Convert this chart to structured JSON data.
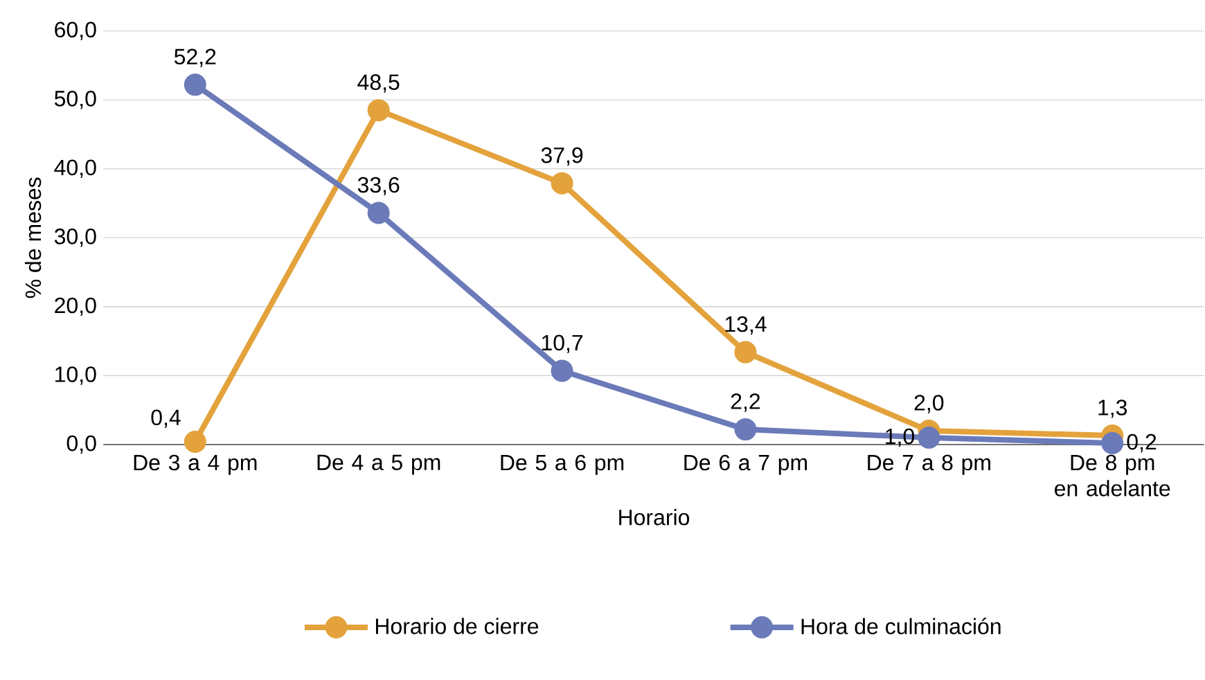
{
  "chart_data": {
    "type": "line",
    "xlabel": "Horario",
    "ylabel": "% de meses",
    "categories": [
      "De 3 a 4 pm",
      "De 4 a 5 pm",
      "De 5 a 6 pm",
      "De 6 a 7 pm",
      "De 7 a 8 pm",
      "De 8 pm en adelante"
    ],
    "ylim": [
      0,
      60
    ],
    "yticks": [
      {
        "value": 0,
        "label": "0,0"
      },
      {
        "value": 10,
        "label": "10,0"
      },
      {
        "value": 20,
        "label": "20,0"
      },
      {
        "value": 30,
        "label": "30,0"
      },
      {
        "value": 40,
        "label": "40,0"
      },
      {
        "value": 50,
        "label": "50,0"
      },
      {
        "value": 60,
        "label": "60,0"
      }
    ],
    "series": [
      {
        "name": "Horario de cierre",
        "color": "#e3a23b",
        "values": [
          0.4,
          48.5,
          37.9,
          13.4,
          2.0,
          1.3
        ],
        "value_labels": [
          "0,4",
          "48,5",
          "37,9",
          "13,4",
          "2,0",
          "1,3"
        ]
      },
      {
        "name": "Hora de culminación",
        "color": "#6b7ab8",
        "values": [
          52.2,
          33.6,
          10.7,
          2.2,
          1.0,
          0.2
        ],
        "value_labels": [
          "52,2",
          "33,6",
          "10,7",
          "2,2",
          "1,0",
          "0,2"
        ]
      }
    ],
    "grid": "y",
    "legend": "bottom",
    "marker": "circle",
    "line_style": "solid"
  }
}
